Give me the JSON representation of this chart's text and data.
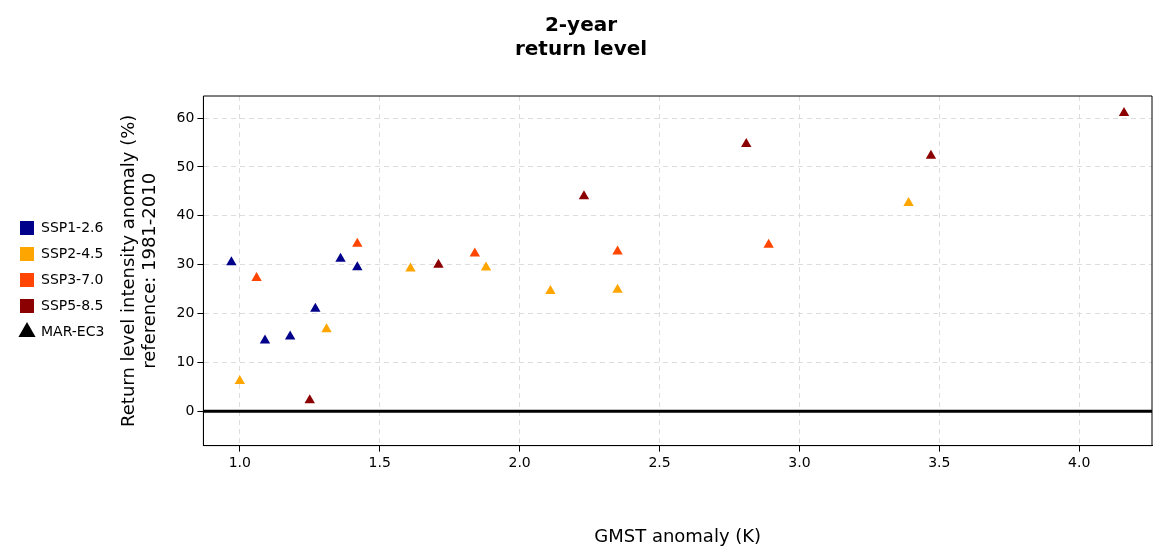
{
  "chart_data": {
    "type": "scatter",
    "title": "2-year\nreturn level",
    "xlabel": "GMST anomaly (K)",
    "ylabel": "Return level intensity anomaly (%)\nreference: 1981-2010",
    "series": [
      {
        "name": "SSP1-2.6",
        "color": "#00008b",
        "x": [
          0.97,
          1.09,
          1.18,
          1.27,
          1.36,
          1.42
        ],
        "values": [
          30.5,
          14.5,
          15.3,
          21,
          31.2,
          29.5
        ]
      },
      {
        "name": "SSP2-4.5",
        "color": "#ffa500",
        "x": [
          1.0,
          1.31,
          1.61,
          1.88,
          2.11,
          2.35,
          3.39
        ],
        "values": [
          6.2,
          16.8,
          29.2,
          29.4,
          24.6,
          24.9,
          42.6
        ]
      },
      {
        "name": "SSP3-7.0",
        "color": "#ff4500",
        "x": [
          1.06,
          1.42,
          1.84,
          2.35,
          2.89
        ],
        "values": [
          27.3,
          34.3,
          32.3,
          32.7,
          34.1
        ]
      },
      {
        "name": "SSP5-8.5",
        "color": "#8b0000",
        "x": [
          1.25,
          1.71,
          2.23,
          2.81,
          3.47,
          4.16
        ],
        "values": [
          2.3,
          30,
          44,
          54.7,
          52.3,
          61
        ]
      },
      {
        "name": "MAR-EC3",
        "color": "#000000"
      }
    ],
    "marker": "triangle",
    "xlim": [
      0.87,
      4.26
    ],
    "ylim": [
      -7,
      64.5
    ],
    "xticks": [
      {
        "value": 1,
        "label": "1.0"
      },
      1.5,
      {
        "value": 2,
        "label": "2.0"
      },
      2.5,
      {
        "value": 3,
        "label": "3.0"
      },
      3.5,
      {
        "value": 4,
        "label": "4.0"
      }
    ],
    "yticks": [
      0,
      10,
      20,
      30,
      40,
      50,
      60
    ],
    "grid": true,
    "legend": "left",
    "ref_lines": [
      {
        "axis": "y",
        "value": 0,
        "color": "#000000"
      }
    ]
  }
}
